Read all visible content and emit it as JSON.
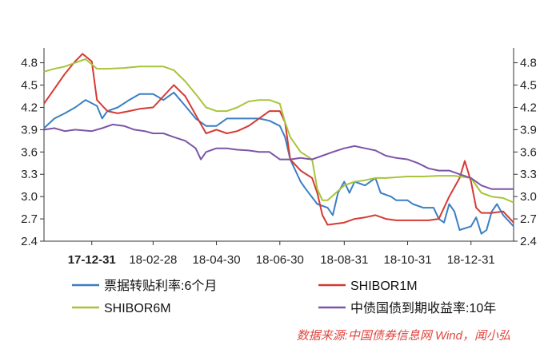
{
  "chart_data": {
    "type": "line",
    "ylim": [
      2.4,
      5.0
    ],
    "yticks": [
      "4.8",
      "4.5",
      "4.2",
      "3.9",
      "3.6",
      "3.3",
      "3.0",
      "2.7",
      "2.4"
    ],
    "xticks": [
      {
        "label": "17-12-31",
        "x": "2017-12-31",
        "bold": true
      },
      {
        "label": "18-02-28",
        "x": "2018-02-28"
      },
      {
        "label": "18-04-30",
        "x": "2018-04-30"
      },
      {
        "label": "18-06-30",
        "x": "2018-06-30"
      },
      {
        "label": "18-08-31",
        "x": "2018-08-31"
      },
      {
        "label": "18-10-31",
        "x": "2018-10-31"
      },
      {
        "label": "18-12-31",
        "x": "2018-12-31"
      }
    ],
    "xlim": [
      "2017-11-15",
      "2019-02-10"
    ],
    "grid": false,
    "legend_position": "bottom",
    "series": [
      {
        "name": "票据转贴利率:6个月",
        "color": "#3a7fc4",
        "points": [
          [
            "2017-11-15",
            3.92
          ],
          [
            "2017-11-25",
            4.05
          ],
          [
            "2017-12-05",
            4.12
          ],
          [
            "2017-12-15",
            4.2
          ],
          [
            "2017-12-25",
            4.3
          ],
          [
            "2018-01-05",
            4.22
          ],
          [
            "2018-01-10",
            4.05
          ],
          [
            "2018-01-15",
            4.15
          ],
          [
            "2018-01-25",
            4.2
          ],
          [
            "2018-02-05",
            4.3
          ],
          [
            "2018-02-15",
            4.38
          ],
          [
            "2018-02-28",
            4.38
          ],
          [
            "2018-03-10",
            4.3
          ],
          [
            "2018-03-20",
            4.4
          ],
          [
            "2018-03-31",
            4.22
          ],
          [
            "2018-04-10",
            4.05
          ],
          [
            "2018-04-20",
            3.95
          ],
          [
            "2018-04-30",
            3.95
          ],
          [
            "2018-05-10",
            4.05
          ],
          [
            "2018-05-20",
            4.05
          ],
          [
            "2018-05-31",
            4.05
          ],
          [
            "2018-06-10",
            4.05
          ],
          [
            "2018-06-20",
            4.02
          ],
          [
            "2018-06-30",
            3.95
          ],
          [
            "2018-07-05",
            3.8
          ],
          [
            "2018-07-10",
            3.5
          ],
          [
            "2018-07-15",
            3.35
          ],
          [
            "2018-07-20",
            3.2
          ],
          [
            "2018-07-25",
            3.1
          ],
          [
            "2018-08-05",
            2.9
          ],
          [
            "2018-08-15",
            2.85
          ],
          [
            "2018-08-20",
            2.75
          ],
          [
            "2018-08-25",
            3.05
          ],
          [
            "2018-08-31",
            3.2
          ],
          [
            "2018-09-05",
            3.05
          ],
          [
            "2018-09-10",
            3.2
          ],
          [
            "2018-09-20",
            3.15
          ],
          [
            "2018-09-30",
            3.25
          ],
          [
            "2018-10-05",
            3.05
          ],
          [
            "2018-10-15",
            3.0
          ],
          [
            "2018-10-20",
            2.95
          ],
          [
            "2018-10-31",
            2.95
          ],
          [
            "2018-11-05",
            2.9
          ],
          [
            "2018-11-15",
            2.85
          ],
          [
            "2018-11-25",
            2.85
          ],
          [
            "2018-11-30",
            2.7
          ],
          [
            "2018-12-05",
            2.65
          ],
          [
            "2018-12-10",
            2.9
          ],
          [
            "2018-12-15",
            2.8
          ],
          [
            "2018-12-20",
            2.55
          ],
          [
            "2018-12-31",
            2.6
          ],
          [
            "2019-01-05",
            2.72
          ],
          [
            "2019-01-10",
            2.5
          ],
          [
            "2019-01-15",
            2.55
          ],
          [
            "2019-01-20",
            2.8
          ],
          [
            "2019-01-25",
            2.9
          ],
          [
            "2019-01-31",
            2.75
          ],
          [
            "2019-02-10",
            2.6
          ]
        ]
      },
      {
        "name": "SHIBOR1M",
        "color": "#d53a33",
        "points": [
          [
            "2017-11-15",
            4.25
          ],
          [
            "2017-11-25",
            4.45
          ],
          [
            "2017-12-05",
            4.65
          ],
          [
            "2017-12-15",
            4.82
          ],
          [
            "2017-12-22",
            4.92
          ],
          [
            "2017-12-31",
            4.82
          ],
          [
            "2018-01-05",
            4.3
          ],
          [
            "2018-01-15",
            4.15
          ],
          [
            "2018-01-25",
            4.12
          ],
          [
            "2018-02-05",
            4.15
          ],
          [
            "2018-02-15",
            4.18
          ],
          [
            "2018-02-28",
            4.2
          ],
          [
            "2018-03-10",
            4.35
          ],
          [
            "2018-03-20",
            4.5
          ],
          [
            "2018-03-31",
            4.35
          ],
          [
            "2018-04-10",
            4.1
          ],
          [
            "2018-04-20",
            3.85
          ],
          [
            "2018-04-30",
            3.9
          ],
          [
            "2018-05-10",
            3.85
          ],
          [
            "2018-05-20",
            3.88
          ],
          [
            "2018-05-31",
            3.95
          ],
          [
            "2018-06-10",
            4.05
          ],
          [
            "2018-06-20",
            4.15
          ],
          [
            "2018-06-30",
            4.15
          ],
          [
            "2018-07-05",
            4.0
          ],
          [
            "2018-07-10",
            3.5
          ],
          [
            "2018-07-20",
            3.35
          ],
          [
            "2018-07-31",
            3.25
          ],
          [
            "2018-08-05",
            3.05
          ],
          [
            "2018-08-10",
            2.75
          ],
          [
            "2018-08-15",
            2.62
          ],
          [
            "2018-08-31",
            2.65
          ],
          [
            "2018-09-10",
            2.7
          ],
          [
            "2018-09-20",
            2.72
          ],
          [
            "2018-09-30",
            2.75
          ],
          [
            "2018-10-10",
            2.7
          ],
          [
            "2018-10-20",
            2.68
          ],
          [
            "2018-10-31",
            2.68
          ],
          [
            "2018-11-10",
            2.68
          ],
          [
            "2018-11-20",
            2.68
          ],
          [
            "2018-11-30",
            2.7
          ],
          [
            "2018-12-10",
            3.0
          ],
          [
            "2018-12-20",
            3.25
          ],
          [
            "2018-12-25",
            3.48
          ],
          [
            "2018-12-31",
            3.2
          ],
          [
            "2019-01-05",
            2.85
          ],
          [
            "2019-01-10",
            2.78
          ],
          [
            "2019-01-20",
            2.78
          ],
          [
            "2019-01-31",
            2.8
          ],
          [
            "2019-02-10",
            2.65
          ]
        ]
      },
      {
        "name": "SHIBOR6M",
        "color": "#a8c43c",
        "points": [
          [
            "2017-11-15",
            4.68
          ],
          [
            "2017-11-25",
            4.72
          ],
          [
            "2017-12-05",
            4.75
          ],
          [
            "2017-12-15",
            4.8
          ],
          [
            "2017-12-25",
            4.85
          ],
          [
            "2018-01-05",
            4.72
          ],
          [
            "2018-01-15",
            4.72
          ],
          [
            "2018-01-31",
            4.73
          ],
          [
            "2018-02-15",
            4.75
          ],
          [
            "2018-02-28",
            4.75
          ],
          [
            "2018-03-10",
            4.75
          ],
          [
            "2018-03-20",
            4.7
          ],
          [
            "2018-03-31",
            4.55
          ],
          [
            "2018-04-10",
            4.38
          ],
          [
            "2018-04-20",
            4.2
          ],
          [
            "2018-04-30",
            4.15
          ],
          [
            "2018-05-10",
            4.15
          ],
          [
            "2018-05-20",
            4.2
          ],
          [
            "2018-05-31",
            4.28
          ],
          [
            "2018-06-10",
            4.3
          ],
          [
            "2018-06-20",
            4.3
          ],
          [
            "2018-06-30",
            4.25
          ],
          [
            "2018-07-05",
            4.0
          ],
          [
            "2018-07-10",
            3.8
          ],
          [
            "2018-07-20",
            3.6
          ],
          [
            "2018-07-31",
            3.5
          ],
          [
            "2018-08-05",
            3.1
          ],
          [
            "2018-08-10",
            2.95
          ],
          [
            "2018-08-15",
            2.95
          ],
          [
            "2018-08-31",
            3.15
          ],
          [
            "2018-09-10",
            3.2
          ],
          [
            "2018-09-20",
            3.22
          ],
          [
            "2018-09-30",
            3.25
          ],
          [
            "2018-10-10",
            3.25
          ],
          [
            "2018-10-20",
            3.26
          ],
          [
            "2018-10-31",
            3.27
          ],
          [
            "2018-11-15",
            3.27
          ],
          [
            "2018-11-30",
            3.28
          ],
          [
            "2018-12-15",
            3.28
          ],
          [
            "2018-12-31",
            3.25
          ],
          [
            "2019-01-10",
            3.05
          ],
          [
            "2019-01-20",
            3.0
          ],
          [
            "2019-01-31",
            2.98
          ],
          [
            "2019-02-10",
            2.92
          ]
        ]
      },
      {
        "name": "中债国债到期收益率:10年",
        "color": "#7c55a6",
        "points": [
          [
            "2017-11-15",
            3.9
          ],
          [
            "2017-11-25",
            3.92
          ],
          [
            "2017-12-05",
            3.88
          ],
          [
            "2017-12-15",
            3.9
          ],
          [
            "2017-12-31",
            3.88
          ],
          [
            "2018-01-10",
            3.92
          ],
          [
            "2018-01-20",
            3.97
          ],
          [
            "2018-01-31",
            3.95
          ],
          [
            "2018-02-10",
            3.9
          ],
          [
            "2018-02-20",
            3.88
          ],
          [
            "2018-02-28",
            3.85
          ],
          [
            "2018-03-10",
            3.85
          ],
          [
            "2018-03-20",
            3.8
          ],
          [
            "2018-03-31",
            3.75
          ],
          [
            "2018-04-10",
            3.65
          ],
          [
            "2018-04-15",
            3.5
          ],
          [
            "2018-04-20",
            3.6
          ],
          [
            "2018-04-30",
            3.65
          ],
          [
            "2018-05-10",
            3.65
          ],
          [
            "2018-05-20",
            3.63
          ],
          [
            "2018-05-31",
            3.62
          ],
          [
            "2018-06-10",
            3.6
          ],
          [
            "2018-06-20",
            3.6
          ],
          [
            "2018-06-30",
            3.5
          ],
          [
            "2018-07-10",
            3.5
          ],
          [
            "2018-07-20",
            3.52
          ],
          [
            "2018-07-31",
            3.5
          ],
          [
            "2018-08-10",
            3.55
          ],
          [
            "2018-08-20",
            3.6
          ],
          [
            "2018-08-31",
            3.65
          ],
          [
            "2018-09-10",
            3.68
          ],
          [
            "2018-09-20",
            3.65
          ],
          [
            "2018-09-30",
            3.62
          ],
          [
            "2018-10-10",
            3.55
          ],
          [
            "2018-10-20",
            3.52
          ],
          [
            "2018-10-31",
            3.5
          ],
          [
            "2018-11-10",
            3.45
          ],
          [
            "2018-11-20",
            3.38
          ],
          [
            "2018-11-30",
            3.35
          ],
          [
            "2018-12-10",
            3.35
          ],
          [
            "2018-12-20",
            3.3
          ],
          [
            "2018-12-31",
            3.25
          ],
          [
            "2019-01-10",
            3.15
          ],
          [
            "2019-01-20",
            3.1
          ],
          [
            "2019-01-31",
            3.1
          ],
          [
            "2019-02-10",
            3.1
          ]
        ]
      }
    ]
  },
  "source": "数据来源:中国债券信息网 Wind，闻小弘"
}
